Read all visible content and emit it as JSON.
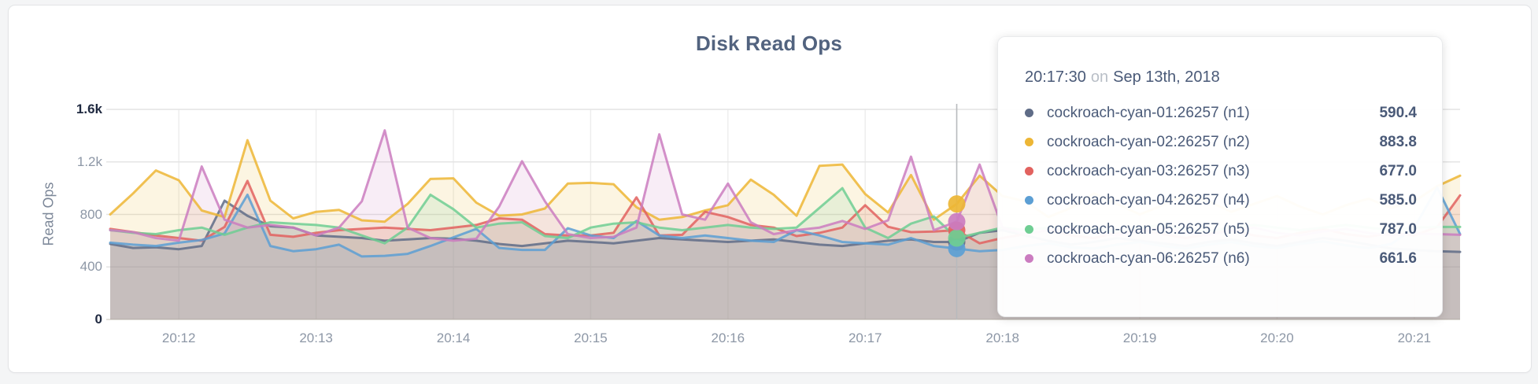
{
  "page": {
    "background": "#f4f5f6",
    "card_background": "#ffffff"
  },
  "chart": {
    "title": "Disk Read Ops",
    "y_axis": {
      "label": "Read Ops",
      "ticks": [
        {
          "label": "0",
          "value": 0,
          "strong": true
        },
        {
          "label": "400",
          "value": 400,
          "strong": false
        },
        {
          "label": "800",
          "value": 800,
          "strong": false
        },
        {
          "label": "1.2k",
          "value": 1200,
          "strong": false
        },
        {
          "label": "1.6k",
          "value": 1600,
          "strong": true
        }
      ]
    },
    "x_axis": {
      "ticks": [
        "20:12",
        "20:13",
        "20:14",
        "20:15",
        "20:16",
        "20:17",
        "20:18",
        "20:19",
        "20:20",
        "20:21"
      ]
    }
  },
  "tooltip": {
    "time": "20:17:30",
    "conjunction": "on",
    "date": "Sep 13th, 2018",
    "rows": [
      {
        "name": "cockroach-cyan-01:26257 (n1)",
        "value": "590.4"
      },
      {
        "name": "cockroach-cyan-02:26257 (n2)",
        "value": "883.8"
      },
      {
        "name": "cockroach-cyan-03:26257 (n3)",
        "value": "677.0"
      },
      {
        "name": "cockroach-cyan-04:26257 (n4)",
        "value": "585.0"
      },
      {
        "name": "cockroach-cyan-05:26257 (n5)",
        "value": "787.0"
      },
      {
        "name": "cockroach-cyan-06:26257 (n6)",
        "value": "661.6"
      }
    ]
  },
  "chart_data": {
    "type": "area",
    "title": "Disk Read Ops",
    "ylabel": "Read Ops",
    "unit": "ops/sec",
    "ylim": [
      0,
      1600
    ],
    "grid": true,
    "x_start": "20:11:30",
    "x_interval_seconds": 10,
    "x_tick_labels": [
      "20:12",
      "20:13",
      "20:14",
      "20:15",
      "20:16",
      "20:17",
      "20:18",
      "20:19",
      "20:20",
      "20:21"
    ],
    "hover": {
      "time": "20:17:30",
      "date": "Sep 13th, 2018",
      "index": 37
    },
    "gridline_values": [
      400,
      800,
      1200,
      1600
    ],
    "series": [
      {
        "key": "n1",
        "name": "cockroach-cyan-01:26257 (n1)",
        "color": "#5F6C87",
        "hover_value": 590.4,
        "values": [
          575,
          545,
          550,
          535,
          560,
          905,
          790,
          710,
          700,
          640,
          630,
          620,
          600,
          610,
          620,
          615,
          600,
          575,
          560,
          580,
          600,
          590,
          580,
          600,
          620,
          610,
          600,
          590,
          600,
          610,
          590,
          570,
          560,
          580,
          600,
          610,
          590,
          590,
          660,
          680,
          640,
          600,
          570,
          590,
          620,
          600,
          580,
          560,
          590,
          610,
          580,
          560,
          590,
          620,
          600,
          570,
          540,
          530,
          520,
          515
        ]
      },
      {
        "key": "n2",
        "name": "cockroach-cyan-02:26257 (n2)",
        "color": "#EDB635",
        "hover_value": 883.8,
        "values": [
          800,
          960,
          1135,
          1060,
          830,
          780,
          1365,
          905,
          770,
          820,
          835,
          755,
          745,
          880,
          1070,
          1075,
          890,
          790,
          800,
          845,
          1035,
          1040,
          1030,
          855,
          760,
          780,
          830,
          870,
          1065,
          950,
          790,
          1170,
          1180,
          955,
          815,
          1100,
          760,
          880,
          1095,
          940,
          900,
          780,
          850,
          960,
          880,
          800,
          870,
          950,
          900,
          820,
          880,
          940,
          860,
          800,
          870,
          920,
          850,
          900,
          1015,
          1095
        ]
      },
      {
        "key": "n3",
        "name": "cockroach-cyan-03:26257 (n3)",
        "color": "#E2625F",
        "hover_value": 677.0,
        "values": [
          690,
          665,
          640,
          620,
          600,
          705,
          1055,
          645,
          630,
          660,
          680,
          690,
          700,
          690,
          680,
          700,
          720,
          770,
          760,
          650,
          640,
          640,
          660,
          930,
          640,
          645,
          820,
          780,
          720,
          700,
          635,
          660,
          700,
          870,
          706,
          665,
          670,
          680,
          580,
          620,
          650,
          680,
          640,
          620,
          660,
          690,
          650,
          620,
          650,
          680,
          640,
          620,
          660,
          690,
          650,
          630,
          660,
          640,
          705,
          945
        ]
      },
      {
        "key": "n4",
        "name": "cockroach-cyan-04:26257 (n4)",
        "color": "#5C9FD4",
        "hover_value": 585.0,
        "values": [
          585,
          570,
          560,
          585,
          605,
          655,
          950,
          560,
          520,
          535,
          570,
          480,
          485,
          500,
          560,
          625,
          690,
          545,
          530,
          530,
          695,
          640,
          620,
          750,
          640,
          620,
          640,
          620,
          600,
          590,
          680,
          640,
          590,
          580,
          570,
          620,
          560,
          540,
          520,
          530,
          560,
          580,
          550,
          540,
          570,
          590,
          560,
          540,
          570,
          590,
          560,
          545,
          575,
          595,
          565,
          545,
          575,
          700,
          1005,
          650
        ]
      },
      {
        "key": "n5",
        "name": "cockroach-cyan-05:26257 (n5)",
        "color": "#6FCE93",
        "hover_value": 787.0,
        "values": [
          680,
          660,
          650,
          680,
          700,
          645,
          700,
          740,
          730,
          720,
          700,
          640,
          580,
          700,
          950,
          840,
          700,
          730,
          740,
          635,
          620,
          700,
          730,
          740,
          700,
          680,
          700,
          720,
          700,
          690,
          700,
          850,
          1000,
          700,
          620,
          730,
          785,
          620,
          660,
          700,
          680,
          700,
          720,
          690,
          670,
          700,
          720,
          690,
          670,
          700,
          720,
          700,
          680,
          700,
          720,
          700,
          680,
          700,
          705,
          705
        ]
      },
      {
        "key": "n6",
        "name": "cockroach-cyan-06:26257 (n6)",
        "color": "#CB7CC0",
        "hover_value": 661.6,
        "values": [
          680,
          665,
          620,
          600,
          1165,
          760,
          700,
          720,
          700,
          640,
          700,
          900,
          1440,
          700,
          620,
          600,
          615,
          860,
          1205,
          900,
          650,
          620,
          630,
          700,
          1410,
          800,
          760,
          1035,
          740,
          650,
          680,
          700,
          750,
          690,
          755,
          1240,
          680,
          745,
          1180,
          700,
          650,
          680,
          700,
          660,
          640,
          680,
          700,
          660,
          640,
          680,
          700,
          660,
          640,
          670,
          690,
          660,
          640,
          655,
          650,
          645
        ]
      }
    ]
  }
}
